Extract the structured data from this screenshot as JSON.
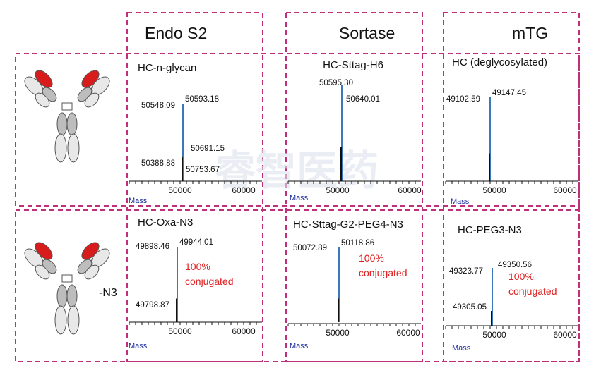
{
  "columns": [
    "Endo S2",
    "Sortase",
    "mTG"
  ],
  "watermark": "睿智医药",
  "rows": [
    {
      "panels": [
        {
          "title": "HC-n-glycan",
          "peaks": [
            "50548.09",
            "50593.18",
            "50691.15",
            "50388.88",
            "50753.67"
          ],
          "ticks": [
            "50000",
            "60000"
          ],
          "axis": "Mass"
        },
        {
          "title": "HC-Sttag-H6",
          "peaks": [
            "50595.30",
            "50640.01"
          ],
          "ticks": [
            "50000",
            "60000"
          ],
          "axis": "Mass"
        },
        {
          "title": "HC (deglycosylated)",
          "peaks": [
            "49102.59",
            "49147.45"
          ],
          "ticks": [
            "50000",
            "60000"
          ],
          "axis": "Mass"
        }
      ]
    },
    {
      "label": "-N3",
      "panels": [
        {
          "title": "HC-Oxa-N3",
          "peaks": [
            "49898.46",
            "49944.01",
            "49798.87"
          ],
          "annotation": [
            "100%",
            "conjugated"
          ],
          "ticks": [
            "50000",
            "60000"
          ],
          "axis": "Mass"
        },
        {
          "title": "HC-Sttag-G2-PEG4-N3",
          "peaks": [
            "50072.89",
            "50118.86"
          ],
          "annotation": [
            "100%",
            "conjugated"
          ],
          "ticks": [
            "50000",
            "60000"
          ],
          "axis": "Mass"
        },
        {
          "title": "HC-PEG3-N3",
          "peaks": [
            "49323.77",
            "49350.56",
            "49305.05"
          ],
          "annotation": [
            "100%",
            "conjugated"
          ],
          "ticks": [
            "50000",
            "60000"
          ],
          "axis": "Mass"
        }
      ]
    }
  ]
}
